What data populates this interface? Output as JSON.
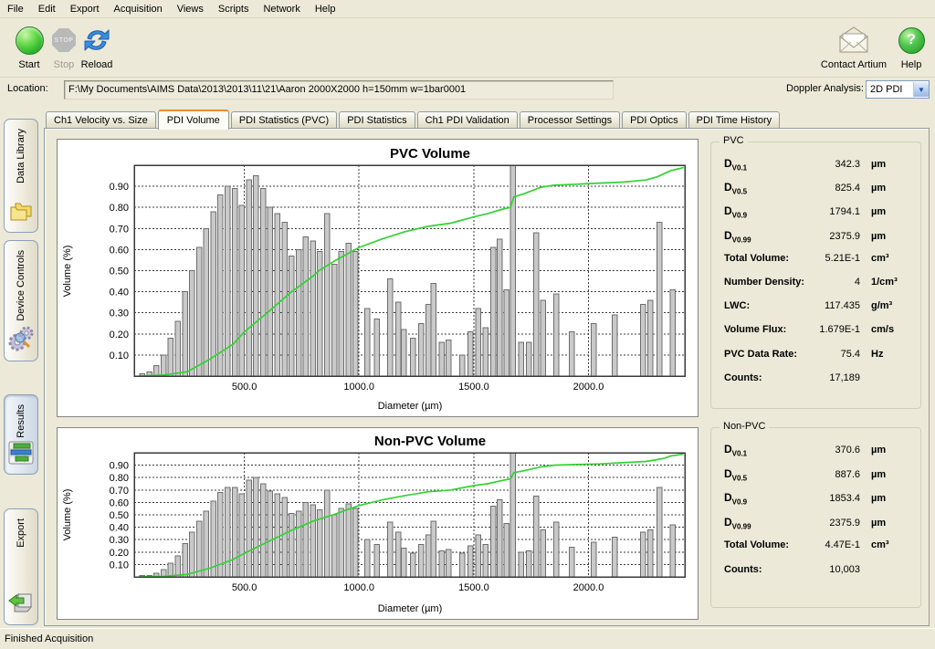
{
  "menu": {
    "items": [
      "File",
      "Edit",
      "Export",
      "Acquisition",
      "Views",
      "Scripts",
      "Network",
      "Help"
    ]
  },
  "toolbar": {
    "start_label": "Start",
    "stop_label": "Stop",
    "reload_label": "Reload",
    "stop_icon_text": "STOP",
    "contact_label": "Contact Artium",
    "help_label": "Help",
    "help_icon_text": "?"
  },
  "location": {
    "label": "Location:",
    "value": "F:\\My Documents\\AIMS Data\\2013\\2013\\11\\21\\Aaron 2000X2000  h=150mm w=1bar0001"
  },
  "doppler": {
    "label": "Doppler Analysis:",
    "value": "2D PDI",
    "arrow": "▼"
  },
  "sidebar": {
    "items": [
      {
        "label": "Data Library",
        "icon": "folders-icon",
        "active": false
      },
      {
        "label": "Device Controls",
        "icon": "gears-icon",
        "active": false
      },
      {
        "label": "Results",
        "icon": "bar-chart-icon",
        "active": true
      },
      {
        "label": "Export",
        "icon": "export-arrow-icon",
        "active": false
      }
    ]
  },
  "tabs": [
    "Ch1 Velocity vs. Size",
    "PDI Volume",
    "PDI Statistics (PVC)",
    "PDI Statistics",
    "Ch1 PDI Validation",
    "Processor Settings",
    "PDI Optics",
    "PDI Time History"
  ],
  "active_tab": "PDI Volume",
  "status": "Finished Acquisition",
  "pvc_panel": {
    "title": "PVC",
    "rows": [
      {
        "d": "D",
        "sub": "V0.1",
        "value": "342.3",
        "unit": "µm"
      },
      {
        "d": "D",
        "sub": "V0.5",
        "value": "825.4",
        "unit": "µm"
      },
      {
        "d": "D",
        "sub": "V0.9",
        "value": "1794.1",
        "unit": "µm"
      },
      {
        "d": "D",
        "sub": "V0.99",
        "value": "2375.9",
        "unit": "µm"
      },
      {
        "label": "Total Volume:",
        "value": "5.21E-1",
        "unit": "cm³"
      },
      {
        "label": "Number Density:",
        "value": "4",
        "unit": "1/cm³"
      },
      {
        "label": "LWC:",
        "value": "117.435",
        "unit": "g/m³"
      },
      {
        "label": "Volume Flux:",
        "value": "1.679E-1",
        "unit": "cm/s"
      },
      {
        "label": "PVC Data Rate:",
        "value": "75.4",
        "unit": "Hz"
      },
      {
        "label": "Counts:",
        "value": "17,189",
        "unit": ""
      }
    ]
  },
  "npvc_panel": {
    "title": "Non-PVC",
    "rows": [
      {
        "d": "D",
        "sub": "V0.1",
        "value": "370.6",
        "unit": "µm"
      },
      {
        "d": "D",
        "sub": "V0.5",
        "value": "887.6",
        "unit": "µm"
      },
      {
        "d": "D",
        "sub": "V0.9",
        "value": "1853.4",
        "unit": "µm"
      },
      {
        "d": "D",
        "sub": "V0.99",
        "value": "2375.9",
        "unit": "µm"
      },
      {
        "label": "Total Volume:",
        "value": "4.47E-1",
        "unit": "cm³"
      },
      {
        "label": "Counts:",
        "value": "10,003",
        "unit": ""
      }
    ]
  },
  "chart_data": [
    {
      "type": "bar",
      "subtype": "histogram_with_cumulative_line",
      "title": "PVC Volume",
      "xlabel": "Diameter (µm)",
      "ylabel": "Volume (%)",
      "xlim": [
        20,
        2420
      ],
      "ylim": [
        0,
        1.0
      ],
      "yticks": [
        0.1,
        0.2,
        0.3,
        0.4,
        0.5,
        0.6,
        0.7,
        0.8,
        0.9
      ],
      "xticks": [
        500,
        1000,
        1500,
        2000
      ],
      "xtick_labels": [
        "500.0",
        "1000.0",
        "1500.0",
        "2000.0"
      ],
      "grid": true,
      "bar_color": "#c9c9c9",
      "bar_edge_color": "#6e6e6e",
      "line_color": "#33d233",
      "bars": [
        [
          55,
          0.01
        ],
        [
          86,
          0.02
        ],
        [
          117,
          0.05
        ],
        [
          148,
          0.1
        ],
        [
          179,
          0.18
        ],
        [
          210,
          0.26
        ],
        [
          241,
          0.4
        ],
        [
          272,
          0.5
        ],
        [
          303,
          0.61
        ],
        [
          334,
          0.7
        ],
        [
          365,
          0.78
        ],
        [
          396,
          0.86
        ],
        [
          427,
          0.9
        ],
        [
          458,
          0.89
        ],
        [
          489,
          0.81
        ],
        [
          520,
          0.93
        ],
        [
          551,
          0.95
        ],
        [
          582,
          0.89
        ],
        [
          613,
          0.8
        ],
        [
          644,
          0.77
        ],
        [
          675,
          0.73
        ],
        [
          706,
          0.57
        ],
        [
          737,
          0.6
        ],
        [
          768,
          0.66
        ],
        [
          799,
          0.64
        ],
        [
          830,
          0.59
        ],
        [
          861,
          0.77
        ],
        [
          892,
          0.53
        ],
        [
          923,
          0.59
        ],
        [
          954,
          0.63
        ],
        [
          985,
          0.59
        ],
        [
          1037,
          0.32
        ],
        [
          1077,
          0.27
        ],
        [
          1136,
          0.46
        ],
        [
          1171,
          0.35
        ],
        [
          1195,
          0.22
        ],
        [
          1235,
          0.18
        ],
        [
          1270,
          0.25
        ],
        [
          1302,
          0.34
        ],
        [
          1325,
          0.44
        ],
        [
          1361,
          0.16
        ],
        [
          1391,
          0.17
        ],
        [
          1449,
          0.1
        ],
        [
          1486,
          0.21
        ],
        [
          1519,
          0.32
        ],
        [
          1552,
          0.23
        ],
        [
          1585,
          0.61
        ],
        [
          1614,
          0.65
        ],
        [
          1642,
          0.41
        ],
        [
          1670,
          1.0
        ],
        [
          1706,
          0.16
        ],
        [
          1740,
          0.16
        ],
        [
          1773,
          0.68
        ],
        [
          1802,
          0.36
        ],
        [
          1859,
          0.39
        ],
        [
          1927,
          0.21
        ],
        [
          2023,
          0.25
        ],
        [
          2114,
          0.29
        ],
        [
          2239,
          0.34
        ],
        [
          2269,
          0.36
        ],
        [
          2309,
          0.73
        ],
        [
          2368,
          0.41
        ]
      ],
      "cumulative": [
        [
          40,
          0.0
        ],
        [
          150,
          0.005
        ],
        [
          250,
          0.02
        ],
        [
          350,
          0.08
        ],
        [
          450,
          0.15
        ],
        [
          500,
          0.21
        ],
        [
          600,
          0.3
        ],
        [
          700,
          0.395
        ],
        [
          800,
          0.475
        ],
        [
          825,
          0.5
        ],
        [
          900,
          0.55
        ],
        [
          1000,
          0.61
        ],
        [
          1100,
          0.65
        ],
        [
          1200,
          0.685
        ],
        [
          1300,
          0.71
        ],
        [
          1400,
          0.725
        ],
        [
          1500,
          0.755
        ],
        [
          1560,
          0.77
        ],
        [
          1620,
          0.79
        ],
        [
          1660,
          0.8
        ],
        [
          1675,
          0.85
        ],
        [
          1720,
          0.865
        ],
        [
          1790,
          0.895
        ],
        [
          1850,
          0.905
        ],
        [
          1950,
          0.91
        ],
        [
          2050,
          0.915
        ],
        [
          2150,
          0.92
        ],
        [
          2250,
          0.93
        ],
        [
          2300,
          0.945
        ],
        [
          2330,
          0.96
        ],
        [
          2360,
          0.975
        ],
        [
          2400,
          0.985
        ],
        [
          2415,
          0.99
        ]
      ]
    },
    {
      "type": "bar",
      "subtype": "histogram_with_cumulative_line",
      "title": "Non-PVC Volume",
      "xlabel": "Diameter (µm)",
      "ylabel": "Volume (%)",
      "xlim": [
        20,
        2420
      ],
      "ylim": [
        0,
        1.0
      ],
      "yticks": [
        0.1,
        0.2,
        0.3,
        0.4,
        0.5,
        0.6,
        0.7,
        0.8,
        0.9
      ],
      "xticks": [
        500,
        1000,
        1500,
        2000
      ],
      "xtick_labels": [
        "500.0",
        "1000.0",
        "1500.0",
        "2000.0"
      ],
      "grid": true,
      "bar_color": "#c9c9c9",
      "bar_edge_color": "#6e6e6e",
      "line_color": "#33d233",
      "bars": [
        [
          55,
          0.01
        ],
        [
          86,
          0.01
        ],
        [
          117,
          0.03
        ],
        [
          148,
          0.06
        ],
        [
          179,
          0.11
        ],
        [
          210,
          0.17
        ],
        [
          241,
          0.27
        ],
        [
          272,
          0.36
        ],
        [
          303,
          0.45
        ],
        [
          334,
          0.53
        ],
        [
          365,
          0.61
        ],
        [
          396,
          0.68
        ],
        [
          427,
          0.72
        ],
        [
          458,
          0.72
        ],
        [
          489,
          0.67
        ],
        [
          520,
          0.78
        ],
        [
          551,
          0.8
        ],
        [
          582,
          0.75
        ],
        [
          613,
          0.69
        ],
        [
          644,
          0.67
        ],
        [
          675,
          0.64
        ],
        [
          706,
          0.51
        ],
        [
          737,
          0.53
        ],
        [
          768,
          0.6
        ],
        [
          799,
          0.58
        ],
        [
          830,
          0.54
        ],
        [
          861,
          0.7
        ],
        [
          892,
          0.5
        ],
        [
          923,
          0.55
        ],
        [
          954,
          0.59
        ],
        [
          985,
          0.55
        ],
        [
          1037,
          0.3
        ],
        [
          1077,
          0.26
        ],
        [
          1136,
          0.44
        ],
        [
          1171,
          0.36
        ],
        [
          1195,
          0.23
        ],
        [
          1235,
          0.19
        ],
        [
          1270,
          0.26
        ],
        [
          1302,
          0.34
        ],
        [
          1325,
          0.45
        ],
        [
          1361,
          0.21
        ],
        [
          1391,
          0.22
        ],
        [
          1449,
          0.19
        ],
        [
          1486,
          0.25
        ],
        [
          1519,
          0.34
        ],
        [
          1552,
          0.26
        ],
        [
          1585,
          0.57
        ],
        [
          1614,
          0.62
        ],
        [
          1642,
          0.43
        ],
        [
          1670,
          1.0
        ],
        [
          1706,
          0.2
        ],
        [
          1740,
          0.21
        ],
        [
          1773,
          0.65
        ],
        [
          1802,
          0.38
        ],
        [
          1859,
          0.44
        ],
        [
          1927,
          0.24
        ],
        [
          2023,
          0.28
        ],
        [
          2114,
          0.32
        ],
        [
          2239,
          0.36
        ],
        [
          2269,
          0.38
        ],
        [
          2309,
          0.72
        ],
        [
          2368,
          0.42
        ]
      ],
      "cumulative": [
        [
          40,
          0.0
        ],
        [
          150,
          0.005
        ],
        [
          250,
          0.02
        ],
        [
          350,
          0.07
        ],
        [
          450,
          0.14
        ],
        [
          500,
          0.19
        ],
        [
          600,
          0.28
        ],
        [
          700,
          0.37
        ],
        [
          800,
          0.45
        ],
        [
          887,
          0.5
        ],
        [
          1000,
          0.575
        ],
        [
          1100,
          0.62
        ],
        [
          1200,
          0.655
        ],
        [
          1300,
          0.685
        ],
        [
          1400,
          0.7
        ],
        [
          1500,
          0.735
        ],
        [
          1560,
          0.75
        ],
        [
          1620,
          0.775
        ],
        [
          1660,
          0.79
        ],
        [
          1675,
          0.84
        ],
        [
          1720,
          0.855
        ],
        [
          1790,
          0.885
        ],
        [
          1850,
          0.9
        ],
        [
          1950,
          0.905
        ],
        [
          2050,
          0.91
        ],
        [
          2150,
          0.92
        ],
        [
          2250,
          0.93
        ],
        [
          2300,
          0.945
        ],
        [
          2330,
          0.955
        ],
        [
          2360,
          0.975
        ],
        [
          2400,
          0.985
        ],
        [
          2415,
          0.99
        ]
      ]
    }
  ]
}
